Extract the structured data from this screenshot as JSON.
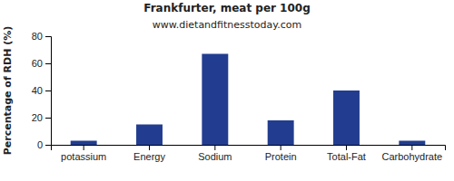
{
  "chart_data": {
    "type": "bar",
    "title": "Frankfurter, meat per 100g",
    "subtitle": "www.dietandfitnesstoday.com",
    "y_label": "Percentage of RDH (%)",
    "categories": [
      "potassium",
      "Energy",
      "Sodium",
      "Protein",
      "Total-Fat",
      "Carbohydrate"
    ],
    "values": [
      3,
      15,
      67,
      18,
      40,
      3
    ],
    "color": "#223d8f",
    "ylim": [
      0,
      80
    ],
    "yticks": [
      0,
      20,
      40,
      60,
      80
    ],
    "grid": false
  }
}
